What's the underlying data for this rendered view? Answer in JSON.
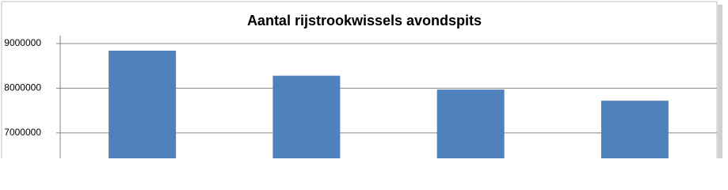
{
  "chart_data": {
    "type": "bar",
    "title": "Aantal rijstrookwissels avondspits",
    "categories": [
      null,
      null,
      null,
      null
    ],
    "values": [
      8840000,
      8280000,
      7970000,
      7720000
    ],
    "color": "#4f81bd",
    "ylim": [
      6430000,
      9000000
    ],
    "yticks": [
      7000000,
      8000000,
      9000000
    ],
    "grid": true
  }
}
